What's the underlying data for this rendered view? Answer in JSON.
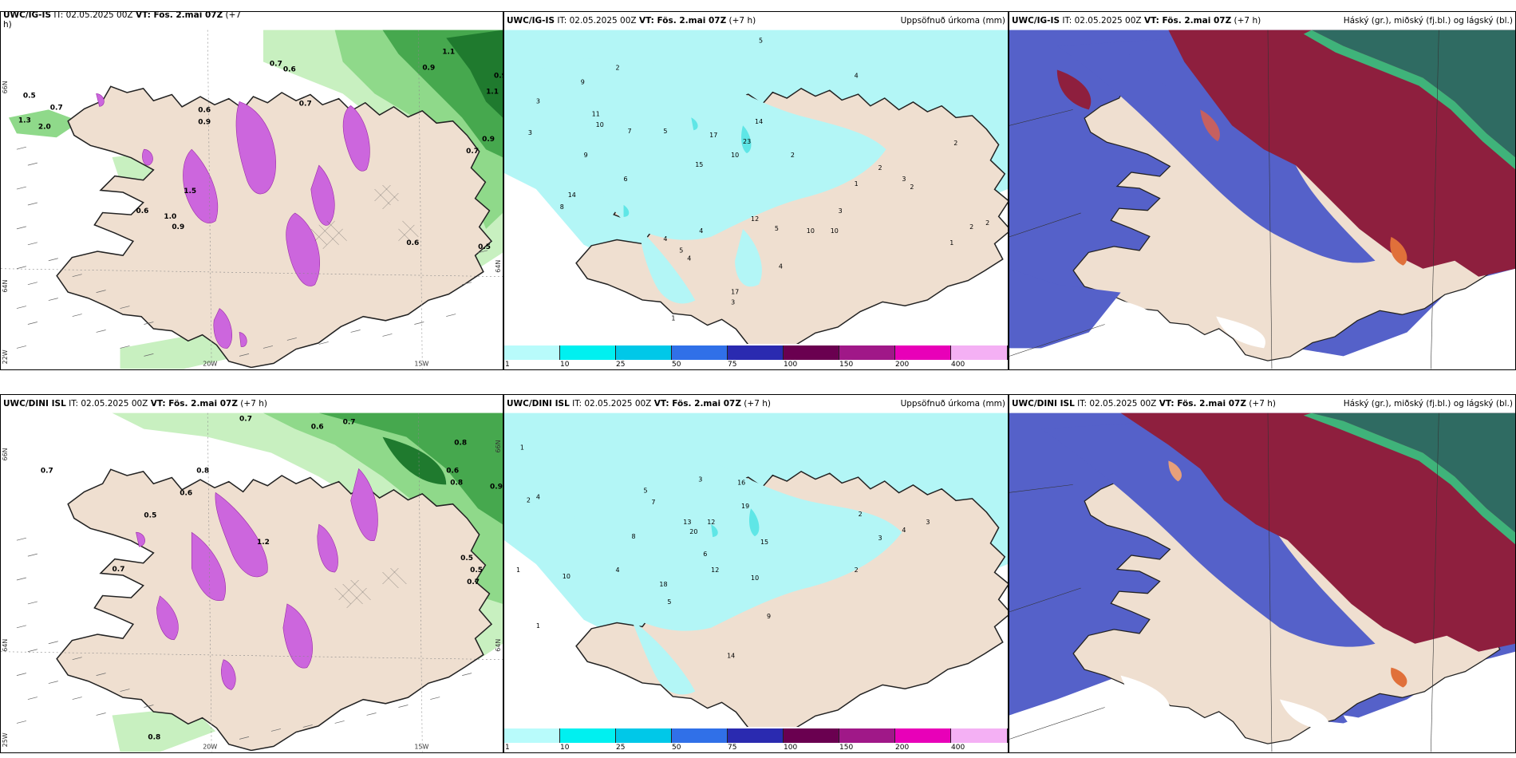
{
  "colors": {
    "land": "#efdfd0",
    "rain": "#b3f6f6",
    "rain_hi": "#5fe6e6",
    "sea": "#ffffff",
    "snow_purple": "#cc66dd",
    "green_lt": "#c8f0c0",
    "green_md": "#78cc78",
    "green_dk": "#1f7a2e",
    "cloud_blue": "#5561c9",
    "cloud_maroon": "#8e1f3e",
    "cloud_teal": "#2f6b62"
  },
  "panels": {
    "top_left": {
      "model": "UWC/IG-IS",
      "it": "IT: 02.05.2025 00Z",
      "vt": "VT: Fös. 2.mai 07Z",
      "lead": "(+7",
      "lead2": "h)",
      "lon_labels": [
        "20W",
        "15W"
      ],
      "lat_labels": [
        "66N",
        "64N"
      ],
      "side_lat": [
        "66N",
        "64N"
      ],
      "left_lon": [
        "22W"
      ],
      "values": [
        "0.5",
        "0.7",
        "0.6",
        "0.9",
        "1.3",
        "2.0",
        "1.5",
        "0.7",
        "0.6",
        "1.1",
        "0.9",
        "0.9",
        "0.7",
        "0.6",
        "0.5",
        "0.6",
        "1.0",
        "0.9",
        "0.7",
        "0.9",
        "1.1"
      ]
    },
    "top_mid": {
      "model": "UWC/IG-IS",
      "it": "IT: 02.05.2025 00Z",
      "vt": "VT: Fös. 2.mai 07Z",
      "lead": "(+7 h)",
      "title_right": "Uppsöfnuð úrkoma (mm)",
      "values": [
        "3",
        "2",
        "5",
        "4",
        "3",
        "9",
        "11",
        "10",
        "2",
        "5",
        "7",
        "17",
        "23",
        "14",
        "15",
        "10",
        "5",
        "4",
        "2",
        "6",
        "14",
        "8",
        "12",
        "10",
        "4",
        "9",
        "4",
        "17",
        "3",
        "10",
        "1",
        "5",
        "2",
        "3",
        "1",
        "2",
        "2",
        "2",
        "1",
        "4",
        "3"
      ]
    },
    "top_right": {
      "model": "UWC/IG-IS",
      "it": "IT: 02.05.2025 00Z",
      "vt": "VT: Fös. 2.mai 07Z",
      "lead": "(+7 h)",
      "title_right": "Háský (gr.), miðský (fj.bl.) og lágský (bl.)"
    },
    "bot_left": {
      "model": "UWC/DINI ISL",
      "it": "IT: 02.05.2025 00Z",
      "vt": "VT: Fös. 2.mai 07Z",
      "lead": "(+7 h)",
      "lon_labels": [
        "20W",
        "15W"
      ],
      "lat_labels": [
        "66N",
        "64N"
      ],
      "side_lat": [
        "66N",
        "64N"
      ],
      "left_lon": [
        "25W"
      ],
      "values": [
        "0.7",
        "0.6",
        "0.7",
        "0.5",
        "0.8",
        "0.7",
        "0.8",
        "0.6",
        "0.5",
        "0.7",
        "0.9",
        "0.8",
        "1.2",
        "0.6",
        "0.5",
        "0.7",
        "0.8"
      ]
    },
    "bot_mid": {
      "model": "UWC/DINI ISL",
      "it": "IT: 02.05.2025 00Z",
      "vt": "VT: Fös. 2.mai 07Z",
      "lead": "(+7 h)",
      "title_right": "Uppsöfnuð úrkoma (mm)",
      "values": [
        "1",
        "2",
        "4",
        "3",
        "5",
        "7",
        "8",
        "12",
        "13",
        "16",
        "19",
        "15",
        "20",
        "10",
        "6",
        "4",
        "2",
        "3",
        "4",
        "1",
        "12",
        "10",
        "14",
        "18",
        "5",
        "3",
        "1",
        "9",
        "2"
      ]
    },
    "bot_right": {
      "model": "UWC/DINI ISL",
      "it": "IT: 02.05.2025 00Z",
      "vt": "VT: Fös. 2.mai 07Z",
      "lead": "(+7 h)",
      "title_right": "Háský (gr.), miðský (fj.bl.) og lágský (bl.)"
    }
  },
  "colorbar": {
    "ticks": [
      "1",
      "10",
      "25",
      "50",
      "75",
      "100",
      "150",
      "200",
      "400"
    ],
    "colors": [
      "#b8fbfb",
      "#00f0f0",
      "#00c8e8",
      "#3070e8",
      "#2a2ab0",
      "#6a0050",
      "#a01888",
      "#e800b8",
      "#f4b0f4"
    ]
  }
}
